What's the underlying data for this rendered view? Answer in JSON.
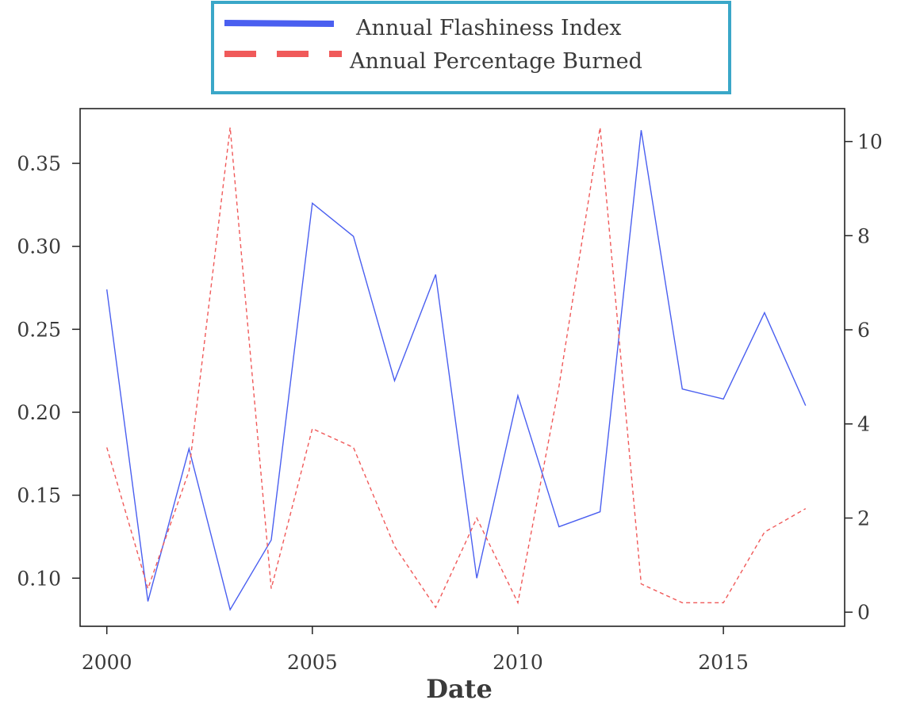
{
  "chart_data": {
    "type": "line",
    "xlabel": "Date",
    "ylabel": "",
    "y2label": "",
    "x": [
      2000,
      2001,
      2002,
      2003,
      2004,
      2005,
      2006,
      2007,
      2008,
      2009,
      2010,
      2011,
      2012,
      2013,
      2014,
      2015,
      2016,
      2017
    ],
    "series": [
      {
        "name": "Annual Flashiness Index",
        "axis": "left",
        "color": "#4a5ff0",
        "style": "solid",
        "values": [
          0.274,
          0.086,
          0.178,
          0.081,
          0.123,
          0.326,
          0.306,
          0.219,
          0.283,
          0.1,
          0.21,
          0.131,
          0.14,
          0.37,
          0.214,
          0.208,
          0.26,
          0.204
        ]
      },
      {
        "name": "Annual Percentage Burned",
        "axis": "right",
        "color": "#f05a5a",
        "style": "dashed",
        "values": [
          3.5,
          0.5,
          3.0,
          10.3,
          0.5,
          3.9,
          3.5,
          1.4,
          0.1,
          2.0,
          0.2,
          4.8,
          10.3,
          0.6,
          0.2,
          0.2,
          1.7,
          2.2
        ]
      }
    ],
    "xlim": [
      1999.35,
      2017.95
    ],
    "xticks": [
      "2000",
      "2005",
      "2010",
      "2015"
    ],
    "ylim": [
      0.071,
      0.383
    ],
    "yticks": [
      "0.10",
      "0.15",
      "0.20",
      "0.25",
      "0.30",
      "0.35"
    ],
    "y2lim": [
      -0.3,
      10.7
    ],
    "y2ticks": [
      "0",
      "2",
      "4",
      "6",
      "8",
      "10"
    ],
    "grid": false,
    "legend_position": "top-center",
    "legend_border_color": "#3aa7c8"
  }
}
